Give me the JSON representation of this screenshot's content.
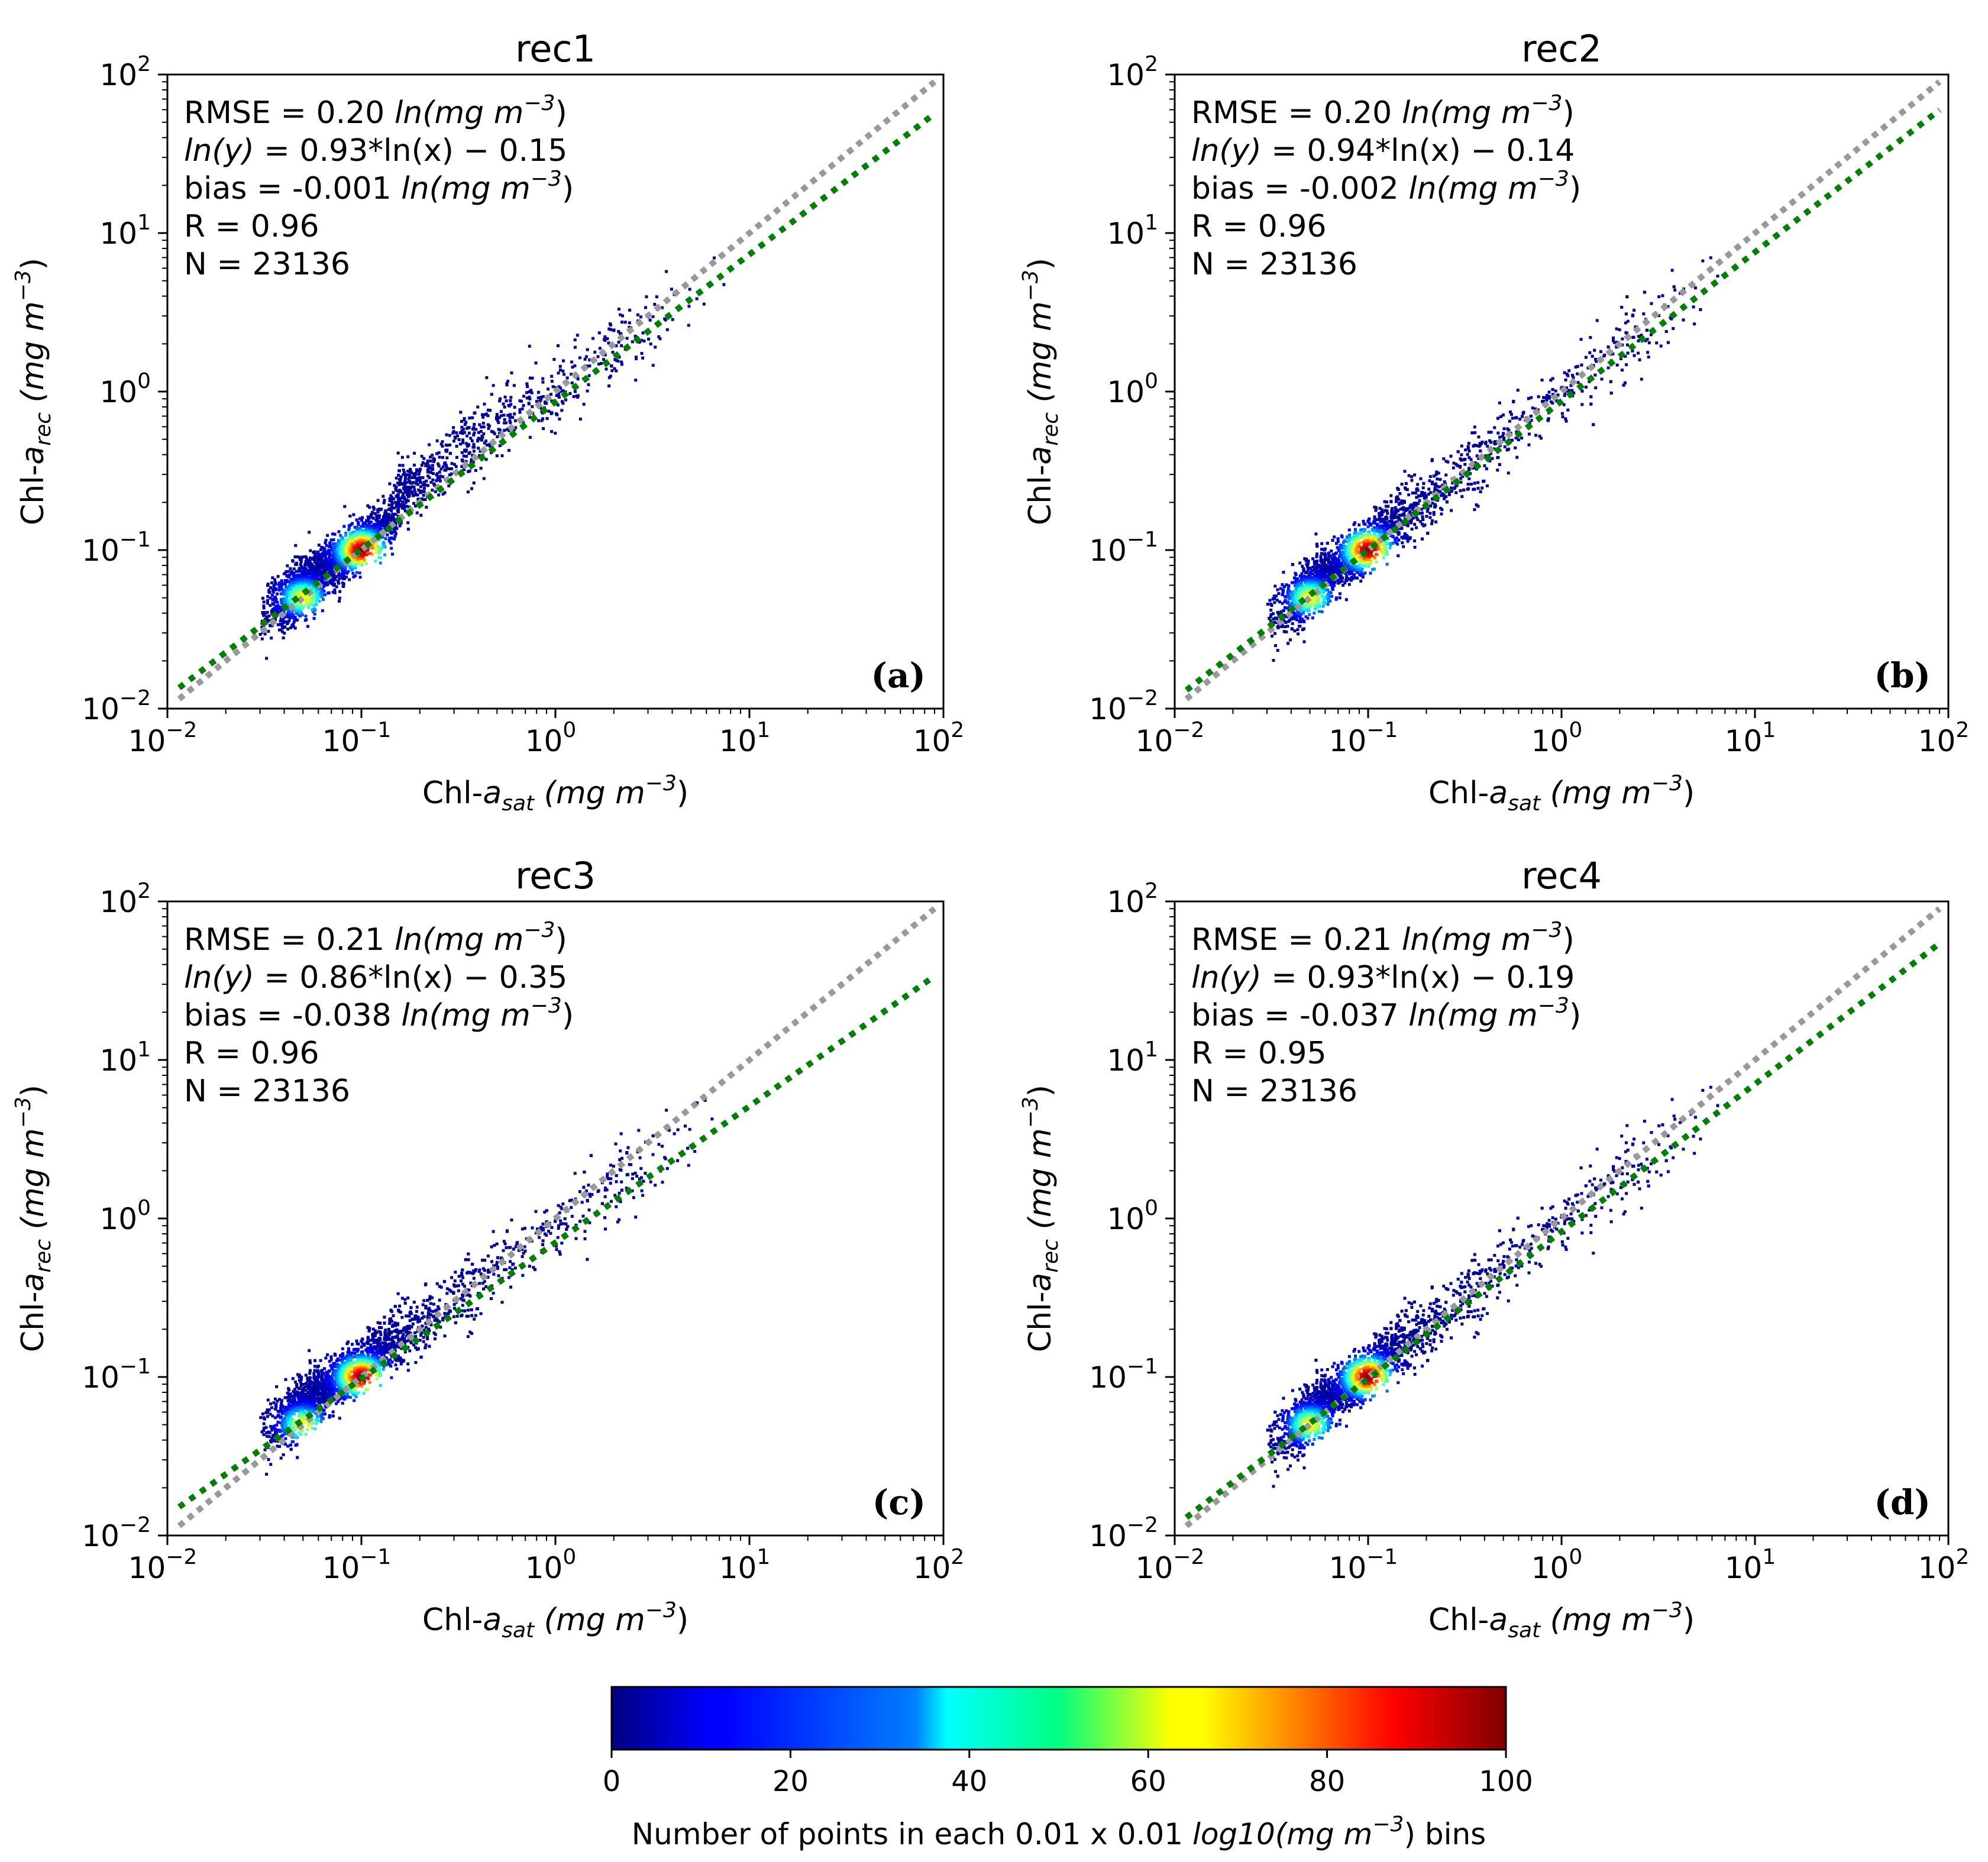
{
  "chart_data": [
    {
      "type": "scatter",
      "subtype": "density-scatter",
      "title": "rec1",
      "panel_label": "(a)",
      "xlabel": {
        "base": "Chl-",
        "italic": "a",
        "sub": "sat",
        "units": " (mg m",
        "exp": "−3",
        "close": ")"
      },
      "ylabel": {
        "base": "Chl-",
        "italic": "a",
        "sub": "rec",
        "units": " (mg m",
        "exp": "−3",
        "close": ")"
      },
      "xscale": "log",
      "yscale": "log",
      "xlim": [
        0.01,
        100
      ],
      "ylim": [
        0.01,
        100
      ],
      "ticks": [
        "10",
        "10",
        "10",
        "10",
        "10"
      ],
      "tick_exponents": [
        "−2",
        "−1",
        "0",
        "1",
        "2"
      ],
      "stats": {
        "rmse_text": "RMSE = 0.20 ",
        "rmse_unit": "ln(mg m",
        "rmse_exp": "−3",
        "fit_text_prefix": "ln(y) = ",
        "fit_text_suffix": " 0.93*ln(x) − 0.15",
        "bias_text": "bias = -0.001 ",
        "bias_unit": "ln(mg m",
        "bias_exp": "−3",
        "r_text": "R = 0.96",
        "n_text": "N = 23136"
      },
      "fit": {
        "slope": 0.93,
        "intercept": -0.15
      },
      "one_to_one": true,
      "clusters": [
        {
          "x": 0.05,
          "y": 0.05,
          "density": 70
        },
        {
          "x": 0.1,
          "y": 0.1,
          "density": 95
        },
        {
          "x": 0.25,
          "y": 0.25,
          "density": 30
        },
        {
          "x": 0.7,
          "y": 0.65,
          "density": 10
        },
        {
          "x": 2.5,
          "y": 2.3,
          "density": 5
        }
      ]
    },
    {
      "type": "scatter",
      "subtype": "density-scatter",
      "title": "rec2",
      "panel_label": "(b)",
      "xlabel": {
        "base": "Chl-",
        "italic": "a",
        "sub": "sat",
        "units": " (mg m",
        "exp": "−3",
        "close": ")"
      },
      "ylabel": {
        "base": "Chl-",
        "italic": "a",
        "sub": "rec",
        "units": " (mg m",
        "exp": "−3",
        "close": ")"
      },
      "xscale": "log",
      "yscale": "log",
      "xlim": [
        0.01,
        100
      ],
      "ylim": [
        0.01,
        100
      ],
      "ticks": [
        "10",
        "10",
        "10",
        "10",
        "10"
      ],
      "tick_exponents": [
        "−2",
        "−1",
        "0",
        "1",
        "2"
      ],
      "stats": {
        "rmse_text": "RMSE = 0.20 ",
        "rmse_unit": "ln(mg m",
        "rmse_exp": "−3",
        "fit_text_prefix": "ln(y) = ",
        "fit_text_suffix": " 0.94*ln(x) − 0.14",
        "bias_text": "bias = -0.002 ",
        "bias_unit": "ln(mg m",
        "bias_exp": "−3",
        "r_text": "R = 0.96",
        "n_text": "N = 23136"
      },
      "fit": {
        "slope": 0.94,
        "intercept": -0.14
      },
      "one_to_one": true,
      "clusters": [
        {
          "x": 0.05,
          "y": 0.05,
          "density": 70
        },
        {
          "x": 0.09,
          "y": 0.09,
          "density": 95
        },
        {
          "x": 0.25,
          "y": 0.25,
          "density": 30
        },
        {
          "x": 0.7,
          "y": 0.7,
          "density": 10
        },
        {
          "x": 2.5,
          "y": 2.5,
          "density": 5
        }
      ]
    },
    {
      "type": "scatter",
      "subtype": "density-scatter",
      "title": "rec3",
      "panel_label": "(c)",
      "xlabel": {
        "base": "Chl-",
        "italic": "a",
        "sub": "sat",
        "units": " (mg m",
        "exp": "−3",
        "close": ")"
      },
      "ylabel": {
        "base": "Chl-",
        "italic": "a",
        "sub": "rec",
        "units": " (mg m",
        "exp": "−3",
        "close": ")"
      },
      "xscale": "log",
      "yscale": "log",
      "xlim": [
        0.01,
        100
      ],
      "ylim": [
        0.01,
        100
      ],
      "ticks": [
        "10",
        "10",
        "10",
        "10",
        "10"
      ],
      "tick_exponents": [
        "−2",
        "−1",
        "0",
        "1",
        "2"
      ],
      "stats": {
        "rmse_text": "RMSE = 0.21 ",
        "rmse_unit": "ln(mg m",
        "rmse_exp": "−3",
        "fit_text_prefix": "ln(y) = ",
        "fit_text_suffix": " 0.86*ln(x) − 0.35",
        "bias_text": "bias = -0.038 ",
        "bias_unit": "ln(mg m",
        "bias_exp": "−3",
        "r_text": "R = 0.96",
        "n_text": "N = 23136"
      },
      "fit": {
        "slope": 0.86,
        "intercept": -0.35
      },
      "one_to_one": true,
      "clusters": [
        {
          "x": 0.05,
          "y": 0.05,
          "density": 70
        },
        {
          "x": 0.1,
          "y": 0.1,
          "density": 95
        },
        {
          "x": 0.25,
          "y": 0.22,
          "density": 30
        },
        {
          "x": 0.7,
          "y": 0.55,
          "density": 10
        },
        {
          "x": 2.5,
          "y": 2.0,
          "density": 5
        }
      ]
    },
    {
      "type": "scatter",
      "subtype": "density-scatter",
      "title": "rec4",
      "panel_label": "(d)",
      "xlabel": {
        "base": "Chl-",
        "italic": "a",
        "sub": "sat",
        "units": " (mg m",
        "exp": "−3",
        "close": ")"
      },
      "ylabel": {
        "base": "Chl-",
        "italic": "a",
        "sub": "rec",
        "units": " (mg m",
        "exp": "−3",
        "close": ")"
      },
      "xscale": "log",
      "yscale": "log",
      "xlim": [
        0.01,
        100
      ],
      "ylim": [
        0.01,
        100
      ],
      "ticks": [
        "10",
        "10",
        "10",
        "10",
        "10"
      ],
      "tick_exponents": [
        "−2",
        "−1",
        "0",
        "1",
        "2"
      ],
      "stats": {
        "rmse_text": "RMSE = 0.21 ",
        "rmse_unit": "ln(mg m",
        "rmse_exp": "−3",
        "fit_text_prefix": "ln(y) = ",
        "fit_text_suffix": " 0.93*ln(x) − 0.19",
        "bias_text": "bias = -0.037 ",
        "bias_unit": "ln(mg m",
        "bias_exp": "−3",
        "r_text": "R = 0.95",
        "n_text": "N = 23136"
      },
      "fit": {
        "slope": 0.93,
        "intercept": -0.19
      },
      "one_to_one": true,
      "clusters": [
        {
          "x": 0.05,
          "y": 0.05,
          "density": 70
        },
        {
          "x": 0.09,
          "y": 0.09,
          "density": 95
        },
        {
          "x": 0.25,
          "y": 0.25,
          "density": 30
        },
        {
          "x": 0.7,
          "y": 0.75,
          "density": 10
        },
        {
          "x": 2.5,
          "y": 2.5,
          "density": 5
        }
      ]
    }
  ],
  "colorbar": {
    "colormap": "jet",
    "range": [
      0,
      100
    ],
    "ticks": [
      "0",
      "20",
      "40",
      "60",
      "80",
      "100"
    ],
    "label_prefix": "Number of points in each 0.01 x 0.01 ",
    "label_log": "log10(mg m",
    "label_exp": "−3",
    "label_suffix": ") bins"
  },
  "colors": {
    "one_to_one_line": "#999999",
    "fit_line": "#008000",
    "axes": "#000000"
  }
}
